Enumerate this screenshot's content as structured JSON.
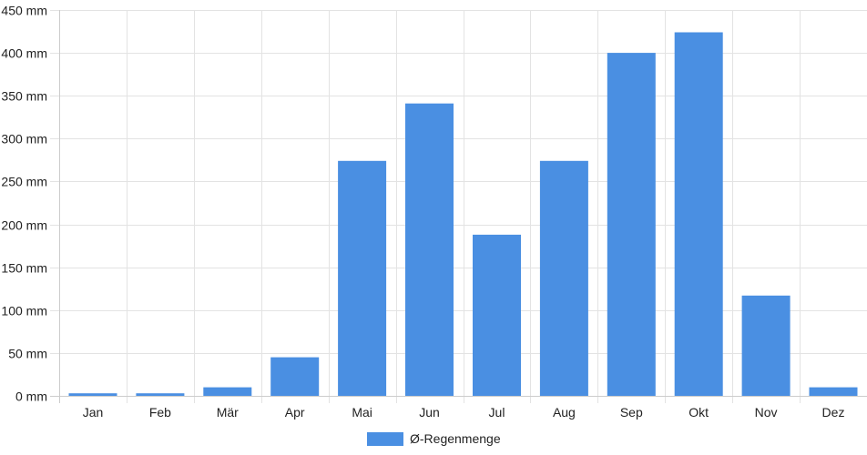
{
  "chart_data": {
    "type": "bar",
    "categories": [
      "Jan",
      "Feb",
      "Mär",
      "Apr",
      "Mai",
      "Jun",
      "Jul",
      "Aug",
      "Sep",
      "Okt",
      "Nov",
      "Dez"
    ],
    "series": [
      {
        "name": "Ø-Regenmenge",
        "values": [
          3,
          3,
          10,
          45,
          274,
          341,
          188,
          274,
          400,
          424,
          117,
          10
        ],
        "color": "#4a8fe2"
      }
    ],
    "y_ticks": [
      "0 mm",
      "50 mm",
      "100 mm",
      "150 mm",
      "200 mm",
      "250 mm",
      "300 mm",
      "350 mm",
      "400 mm",
      "450 mm"
    ],
    "ylim": [
      0,
      450
    ],
    "y_step": 50,
    "grid": true,
    "legend_position": "bottom-center"
  }
}
